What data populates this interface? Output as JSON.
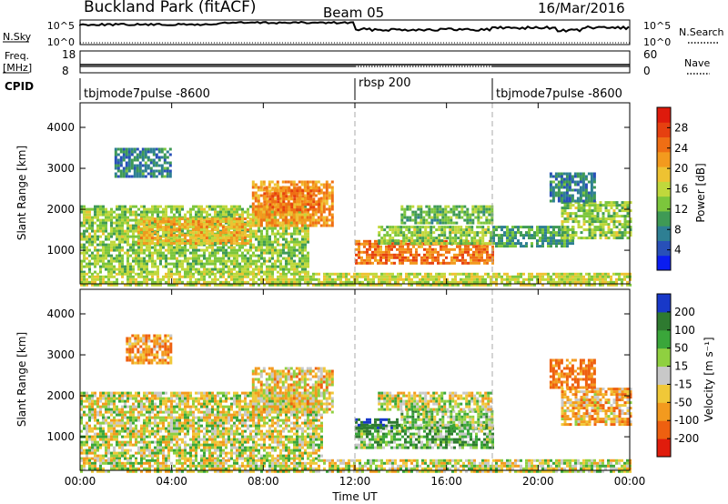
{
  "header": {
    "station": "Buckland Park (fitACF)",
    "beam": "Beam 05",
    "date": "16/Mar/2016"
  },
  "top_panels": {
    "nsky_label": "N.Sky",
    "nsky_ticks": [
      "10^5",
      "10^0"
    ],
    "nsearch_label": "N.Search",
    "nsearch_ticks": [
      "10^5",
      "10^0"
    ],
    "freq_label_1": "Freq.",
    "freq_label_2": "[MHz]",
    "freq_ticks": [
      "18",
      "8"
    ],
    "nave_label": "Nave",
    "nave_ticks": [
      "60",
      "0"
    ],
    "cpid_label": "CPID",
    "modes": [
      {
        "name": "tbjmode7pulse  -8600",
        "start": 0,
        "end": 12
      },
      {
        "name": "rbsp  200",
        "start": 12,
        "end": 18
      },
      {
        "name": "tbjmode7pulse  -8600",
        "start": 18,
        "end": 24
      }
    ]
  },
  "chart_data": [
    {
      "type": "heatmap",
      "title": "",
      "xlabel": "Time UT",
      "ylabel": "Slant Range [km]",
      "xlim": [
        0,
        24
      ],
      "ylim": [
        180,
        4600
      ],
      "x_ticks": [
        "00:00",
        "04:00",
        "08:00",
        "12:00",
        "16:00",
        "20:00",
        "00:00"
      ],
      "y_ticks": [
        1000,
        2000,
        3000,
        4000
      ],
      "colorbar": {
        "label": "Power [dB]",
        "ticks": [
          4,
          8,
          12,
          16,
          20,
          24,
          28
        ],
        "range": [
          0,
          32
        ],
        "colors": [
          "#0a1cf0",
          "#2850b8",
          "#2e7f93",
          "#3f9a55",
          "#7cc63c",
          "#c0d83c",
          "#eec232",
          "#f39a1e",
          "#ef6e14",
          "#e64010",
          "#de1a0c"
        ]
      },
      "regions": [
        {
          "t0": 0.0,
          "t1": 10.0,
          "r0": 450,
          "r1": 2100,
          "level": 14
        },
        {
          "t0": 2.5,
          "t1": 7.5,
          "r0": 1200,
          "r1": 1800,
          "level": 20
        },
        {
          "t0": 7.5,
          "t1": 11.0,
          "r0": 1600,
          "r1": 2700,
          "level": 22
        },
        {
          "t0": 8.0,
          "t1": 10.5,
          "r0": 2000,
          "r1": 2550,
          "level": 24
        },
        {
          "t0": 1.5,
          "t1": 4.0,
          "r0": 2800,
          "r1": 3500,
          "level": 8
        },
        {
          "t0": 12.0,
          "t1": 18.0,
          "r0": 700,
          "r1": 1250,
          "level": 24
        },
        {
          "t0": 13.0,
          "t1": 18.0,
          "r0": 1200,
          "r1": 1600,
          "level": 14
        },
        {
          "t0": 14.0,
          "t1": 18.0,
          "r0": 1700,
          "r1": 2100,
          "level": 12
        },
        {
          "t0": 18.0,
          "t1": 21.5,
          "r0": 1100,
          "r1": 1600,
          "level": 10
        },
        {
          "t0": 21.0,
          "t1": 24.0,
          "r0": 1300,
          "r1": 2200,
          "level": 14
        },
        {
          "t0": 20.5,
          "t1": 22.5,
          "r0": 2200,
          "r1": 2900,
          "level": 8
        },
        {
          "t0": 0.0,
          "t1": 24.0,
          "r0": 180,
          "r1": 450,
          "level": 16
        }
      ]
    },
    {
      "type": "heatmap",
      "title": "",
      "xlabel": "Time UT",
      "ylabel": "Slant Range [km]",
      "xlim": [
        0,
        24
      ],
      "ylim": [
        180,
        4600
      ],
      "x_ticks": [
        "00:00",
        "04:00",
        "08:00",
        "12:00",
        "16:00",
        "20:00",
        "00:00"
      ],
      "y_ticks": [
        1000,
        2000,
        3000,
        4000
      ],
      "colorbar": {
        "label": "Velocity [m s⁻¹]",
        "ticks": [
          200,
          100,
          50,
          15,
          -15,
          -50,
          -100,
          -200
        ],
        "colors": [
          "#1838c8",
          "#2e7a30",
          "#3aa63a",
          "#8fd040",
          "#c8c8c8",
          "#f0c838",
          "#f39a1e",
          "#ee6010",
          "#e01c0c"
        ]
      },
      "regions": [
        {
          "t0": 0.0,
          "t1": 10.5,
          "r0": 450,
          "r1": 2100,
          "level": 0
        },
        {
          "t0": 7.5,
          "t1": 11.0,
          "r0": 1600,
          "r1": 2700,
          "level": -30
        },
        {
          "t0": 2.0,
          "t1": 4.0,
          "r0": 2800,
          "r1": 3500,
          "level": -80
        },
        {
          "t0": 12.0,
          "t1": 18.0,
          "r0": 750,
          "r1": 1300,
          "level": 60
        },
        {
          "t0": 12.0,
          "t1": 14.0,
          "r0": 1250,
          "r1": 1450,
          "level": 180
        },
        {
          "t0": 14.0,
          "t1": 18.0,
          "r0": 1250,
          "r1": 1650,
          "level": 40
        },
        {
          "t0": 13.0,
          "t1": 18.0,
          "r0": 1700,
          "r1": 2100,
          "level": 0
        },
        {
          "t0": 21.0,
          "t1": 24.0,
          "r0": 1300,
          "r1": 2200,
          "level": -60
        },
        {
          "t0": 20.5,
          "t1": 22.5,
          "r0": 2200,
          "r1": 2900,
          "level": -120
        },
        {
          "t0": 0.0,
          "t1": 24.0,
          "r0": 180,
          "r1": 450,
          "level": 0
        }
      ]
    }
  ]
}
